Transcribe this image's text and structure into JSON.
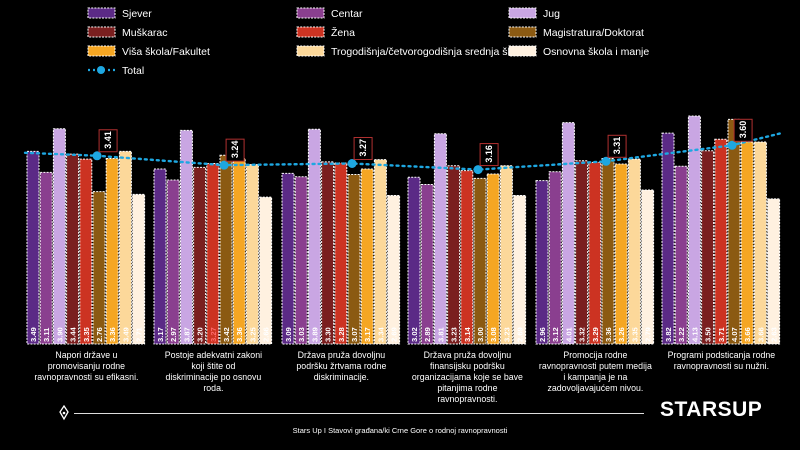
{
  "chart_data": {
    "type": "bar",
    "categories": [
      "Napori države u promovisanju rodne ravnopravnosti su efikasni.",
      "Postoje adekvatni zakoni koji štite od diskriminacije po osnovu roda.",
      "Država pruža dovoljnu podršku žrtvama rodne diskriminacije.",
      "Država pruža dovoljnu finansijsku podršku organizacijama koje se bave pitanjima rodne ravnopravnosti.",
      "Promocija rodne ravnopravnosti putem medija i kampanja je na zadovoljavajućem nivou.",
      "Programi podsticanja rodne ravnopravnosti su nužni."
    ],
    "series": [
      {
        "name": "Sjever",
        "color": "#5b2a86",
        "values": [
          3.49,
          3.17,
          3.09,
          3.02,
          2.96,
          3.82
        ]
      },
      {
        "name": "Centar",
        "color": "#8a3f8f",
        "values": [
          3.11,
          2.97,
          3.03,
          2.89,
          3.12,
          3.22
        ]
      },
      {
        "name": "Jug",
        "color": "#c9a6e3",
        "values": [
          3.9,
          3.87,
          3.89,
          3.81,
          4.01,
          4.13
        ]
      },
      {
        "name": "Muškarac",
        "color": "#7a1f1f",
        "values": [
          3.44,
          3.2,
          3.3,
          3.23,
          3.32,
          3.5
        ]
      },
      {
        "name": "Žena",
        "color": "#cc3322",
        "values": [
          3.35,
          3.27,
          3.28,
          3.14,
          3.29,
          3.71
        ]
      },
      {
        "name": "Magistratura/Doktorat",
        "color": "#8b5a12",
        "values": [
          2.76,
          3.42,
          3.07,
          3.0,
          3.36,
          4.07
        ]
      },
      {
        "name": "Viša škola/Fakultet",
        "color": "#f5a623",
        "values": [
          3.36,
          3.36,
          3.17,
          3.08,
          3.26,
          3.66
        ]
      },
      {
        "name": "Trogodišnja/četvorogodišnja srednja škola",
        "color": "#fcd89a",
        "values": [
          3.49,
          3.25,
          3.34,
          3.23,
          3.35,
          3.66
        ]
      },
      {
        "name": "Osnovna škola i manje",
        "color": "#fff1e0",
        "values": [
          2.71,
          2.66,
          2.69,
          2.69,
          2.79,
          2.63
        ]
      }
    ],
    "total": {
      "name": "Total",
      "color": "#1ea7e1",
      "values": [
        3.41,
        3.24,
        3.27,
        3.16,
        3.31,
        3.6
      ]
    },
    "value_label_colors": {
      "default": "#ffffff",
      "highlight": "#ff6b6b"
    },
    "highlighted_labels": [
      [
        4,
        1
      ]
    ],
    "ylim": [
      0,
      4.5
    ],
    "legend_position": "top",
    "grid": false
  },
  "footer": {
    "text": "Stars Up I Stavovi građana/ki Crne Gore o rodnoj ravnopravnosti",
    "logo": "STARSUP"
  }
}
